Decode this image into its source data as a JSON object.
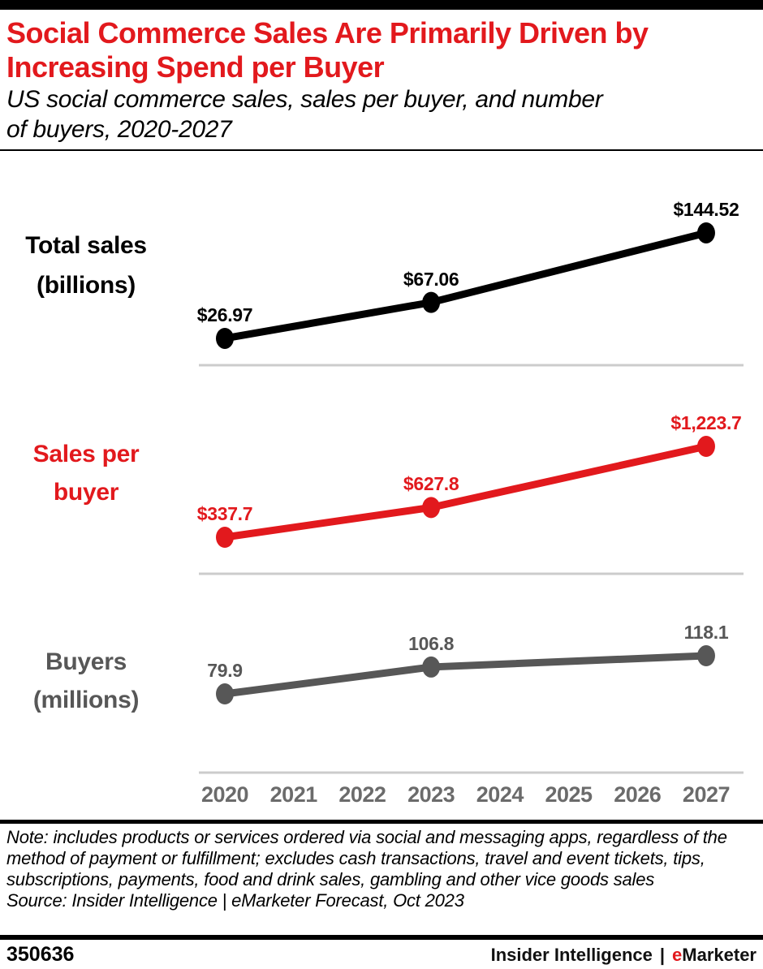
{
  "header": {
    "title": "Social Commerce Sales Are Primarily Driven by\nIncreasing Spend per Buyer",
    "subtitle": "US social commerce sales, sales per buyer, and number\nof buyers, 2020-2027"
  },
  "sections": [
    {
      "label_line1": "Total sales",
      "label_line2": "(billions)"
    },
    {
      "label_line1": "Sales per",
      "label_line2": "buyer"
    },
    {
      "label_line1": "Buyers",
      "label_line2": "(millions)"
    }
  ],
  "chart_data": {
    "type": "line",
    "title": "US social commerce sales, sales per buyer, and number of buyers, 2020-2027",
    "x": [
      2020,
      2023,
      2027
    ],
    "x_axis_years": [
      "2020",
      "2021",
      "2022",
      "2023",
      "2024",
      "2025",
      "2026",
      "2027"
    ],
    "xlim": [
      2020,
      2027
    ],
    "grid": false,
    "legend_position": "left-row-labels",
    "series": [
      {
        "key": "total-sales",
        "name": "Total sales (billions)",
        "color": "#000000",
        "values": [
          26.97,
          67.06,
          144.52
        ],
        "labels": [
          "$26.97",
          "$67.06",
          "$144.52"
        ]
      },
      {
        "key": "sales-per-buyer",
        "name": "Sales per buyer",
        "color": "#e2191d",
        "values": [
          337.7,
          627.8,
          1223.7
        ],
        "labels": [
          "$337.7",
          "$627.8",
          "$1,223.7"
        ]
      },
      {
        "key": "buyers",
        "name": "Buyers (millions)",
        "color": "#575757",
        "values": [
          79.9,
          106.8,
          118.1
        ],
        "labels": [
          "79.9",
          "106.8",
          "118.1"
        ]
      }
    ]
  },
  "colors": {
    "accent_red": "#e2191d",
    "axis_gray": "#6b6b6b",
    "line_gray": "#575757",
    "baseline_gray": "#cccccc",
    "black": "#000000"
  },
  "note": {
    "text": "Note: includes products or services ordered via social and messaging apps, regardless of the method of payment or fulfillment; excludes cash transactions, travel and event tickets, tips, subscriptions, payments, food and drink sales, gambling and other vice goods sales",
    "source": "Source: Insider Intelligence | eMarketer Forecast, Oct 2023"
  },
  "footer": {
    "chart_id": "350636",
    "brand_left": "Insider Intelligence",
    "brand_separator": "|",
    "brand_e": "e",
    "brand_marketer": "Marketer"
  }
}
